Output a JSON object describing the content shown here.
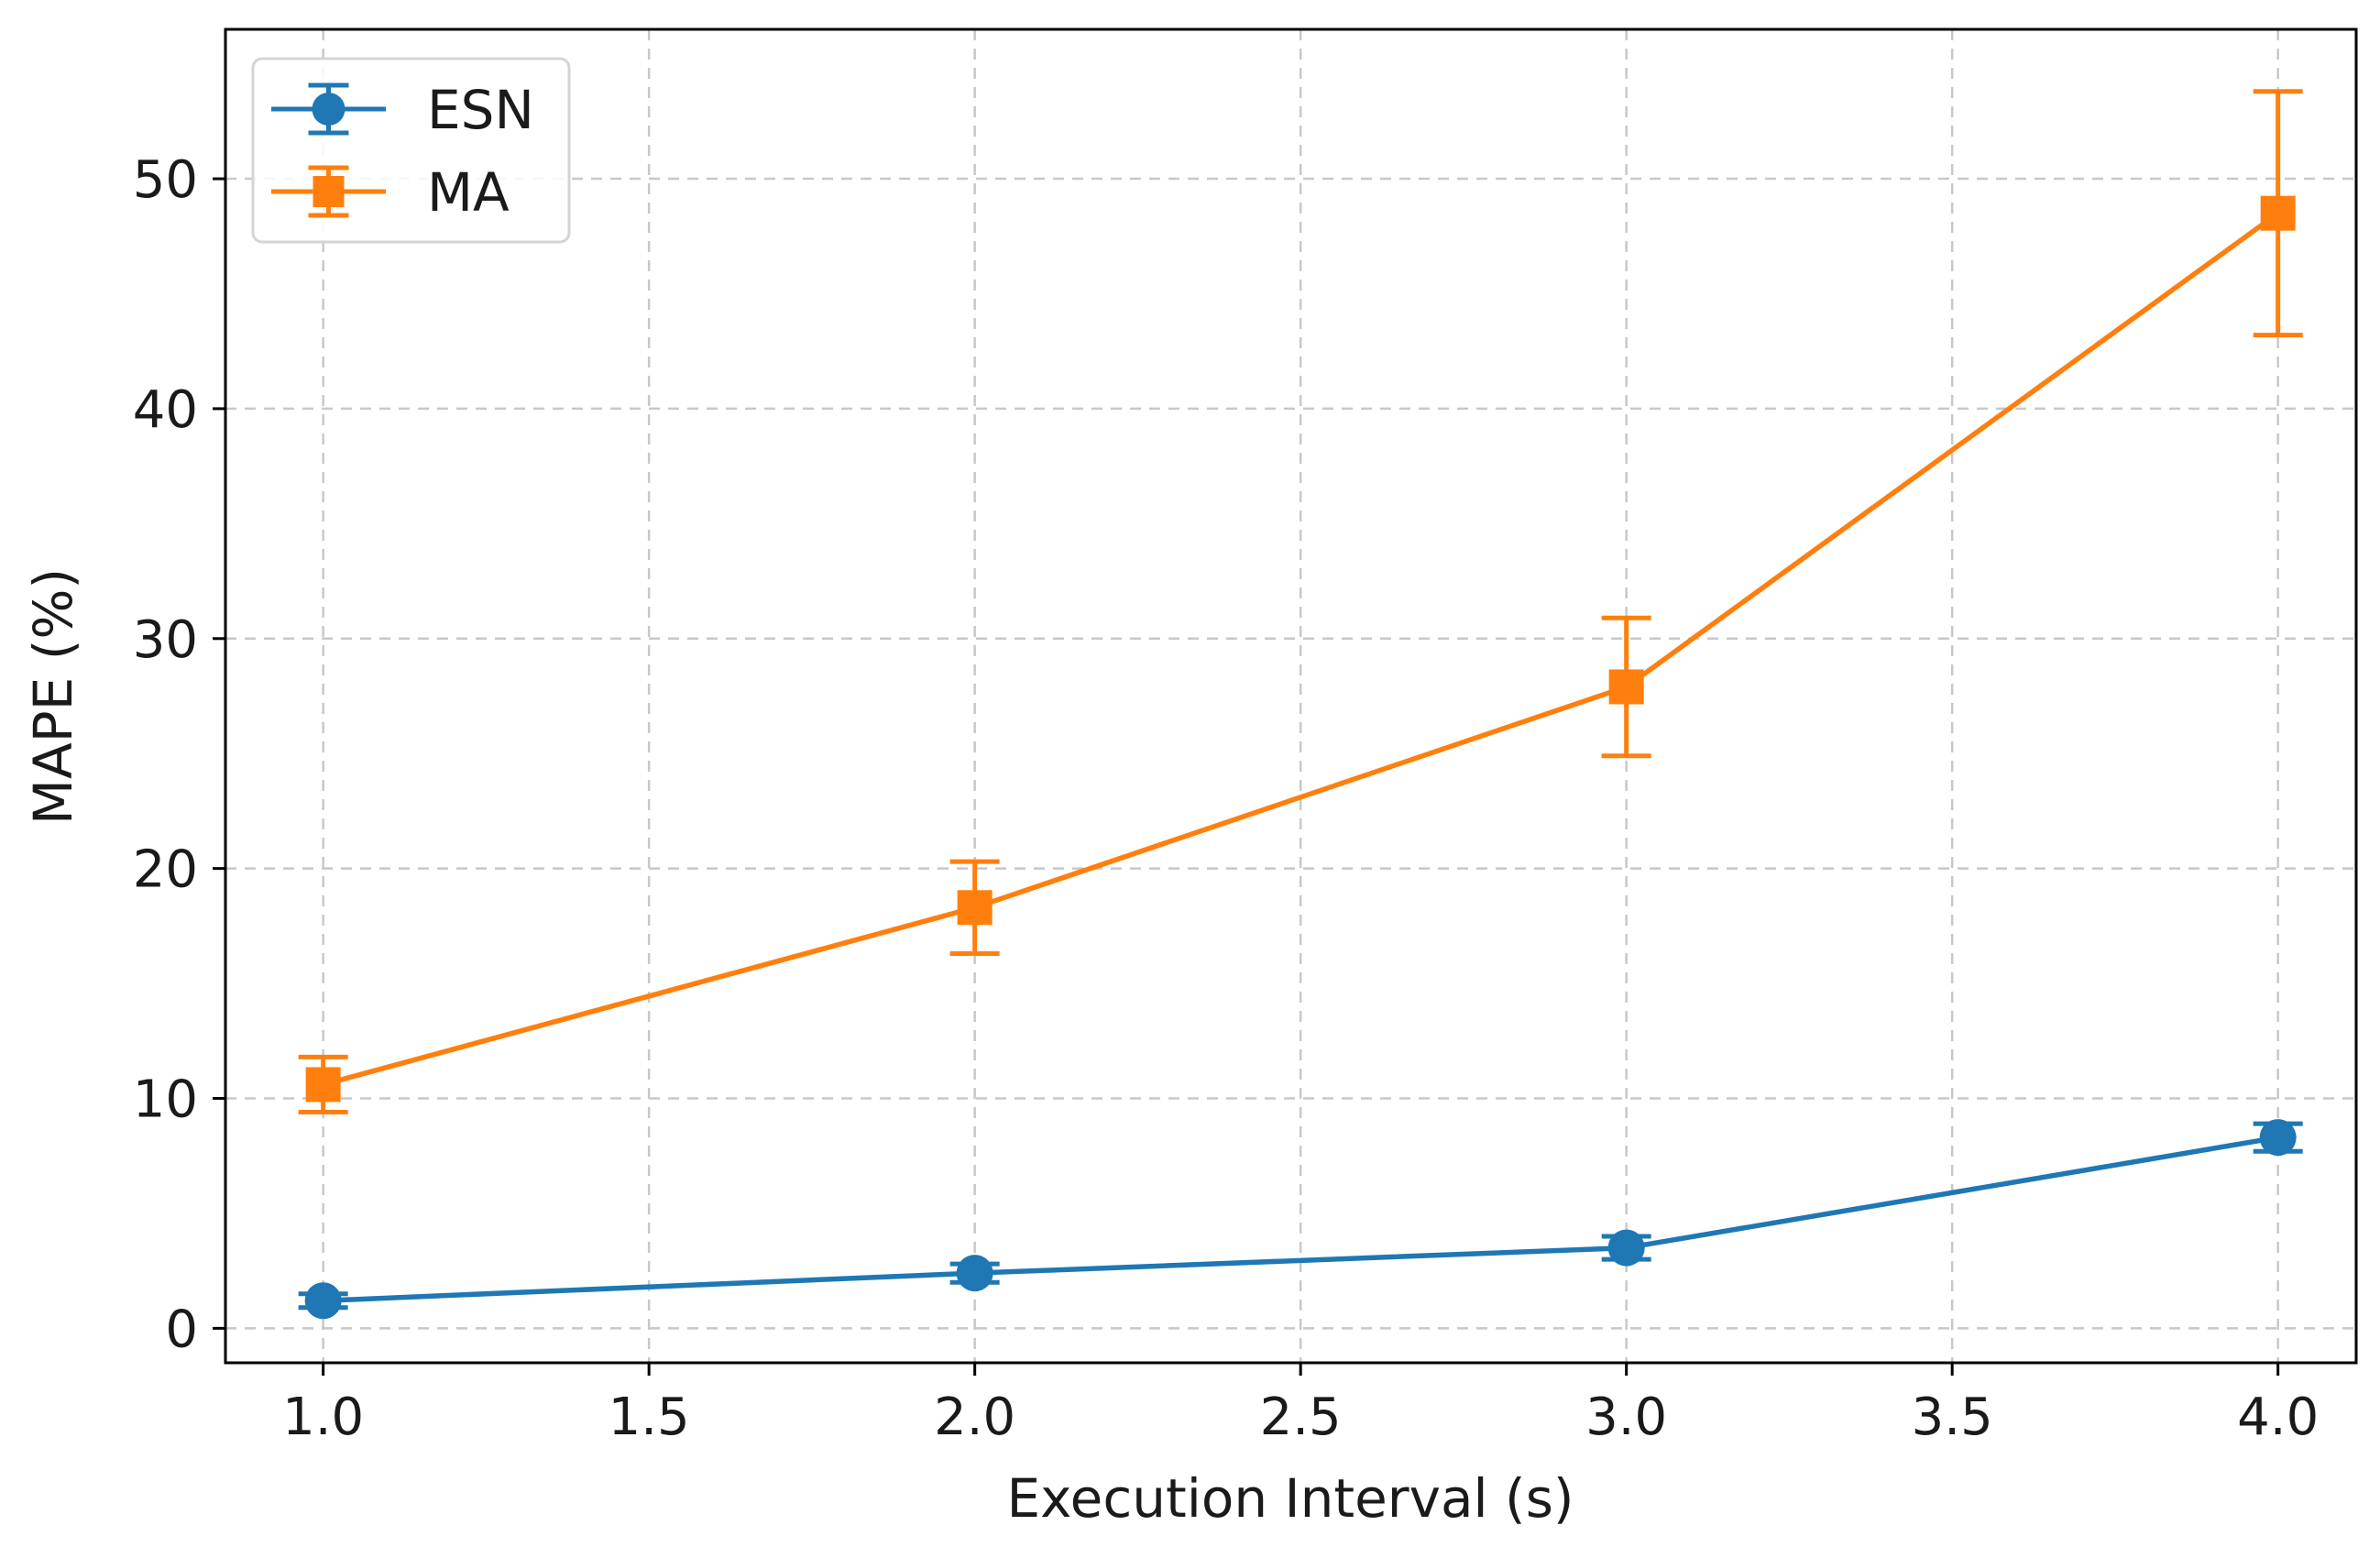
{
  "chart_data": {
    "type": "line",
    "title": "",
    "xlabel": "Execution Interval (s)",
    "ylabel": "MAPE (%)",
    "xlim": [
      0.85,
      4.12
    ],
    "ylim": [
      -1.5,
      56.5
    ],
    "xticks": [
      1.0,
      1.5,
      2.0,
      2.5,
      3.0,
      3.5,
      4.0
    ],
    "xtick_labels": [
      "1.0",
      "1.5",
      "2.0",
      "2.5",
      "3.0",
      "3.5",
      "4.0"
    ],
    "yticks": [
      0,
      10,
      20,
      30,
      40,
      50
    ],
    "ytick_labels": [
      "0",
      "10",
      "20",
      "30",
      "40",
      "50"
    ],
    "grid": true,
    "legend_position": "top-left",
    "x": [
      1.0,
      2.0,
      3.0,
      4.0
    ],
    "series": [
      {
        "name": "ESN",
        "values": [
          1.2,
          2.4,
          3.5,
          8.3
        ],
        "error": [
          0.3,
          0.4,
          0.5,
          0.6
        ],
        "color": "#1f77b4",
        "marker": "circle"
      },
      {
        "name": "MA",
        "values": [
          10.6,
          18.3,
          27.9,
          48.5
        ],
        "error": [
          1.2,
          2.0,
          3.0,
          5.3
        ],
        "color": "#ff7f0e",
        "marker": "square"
      }
    ]
  }
}
